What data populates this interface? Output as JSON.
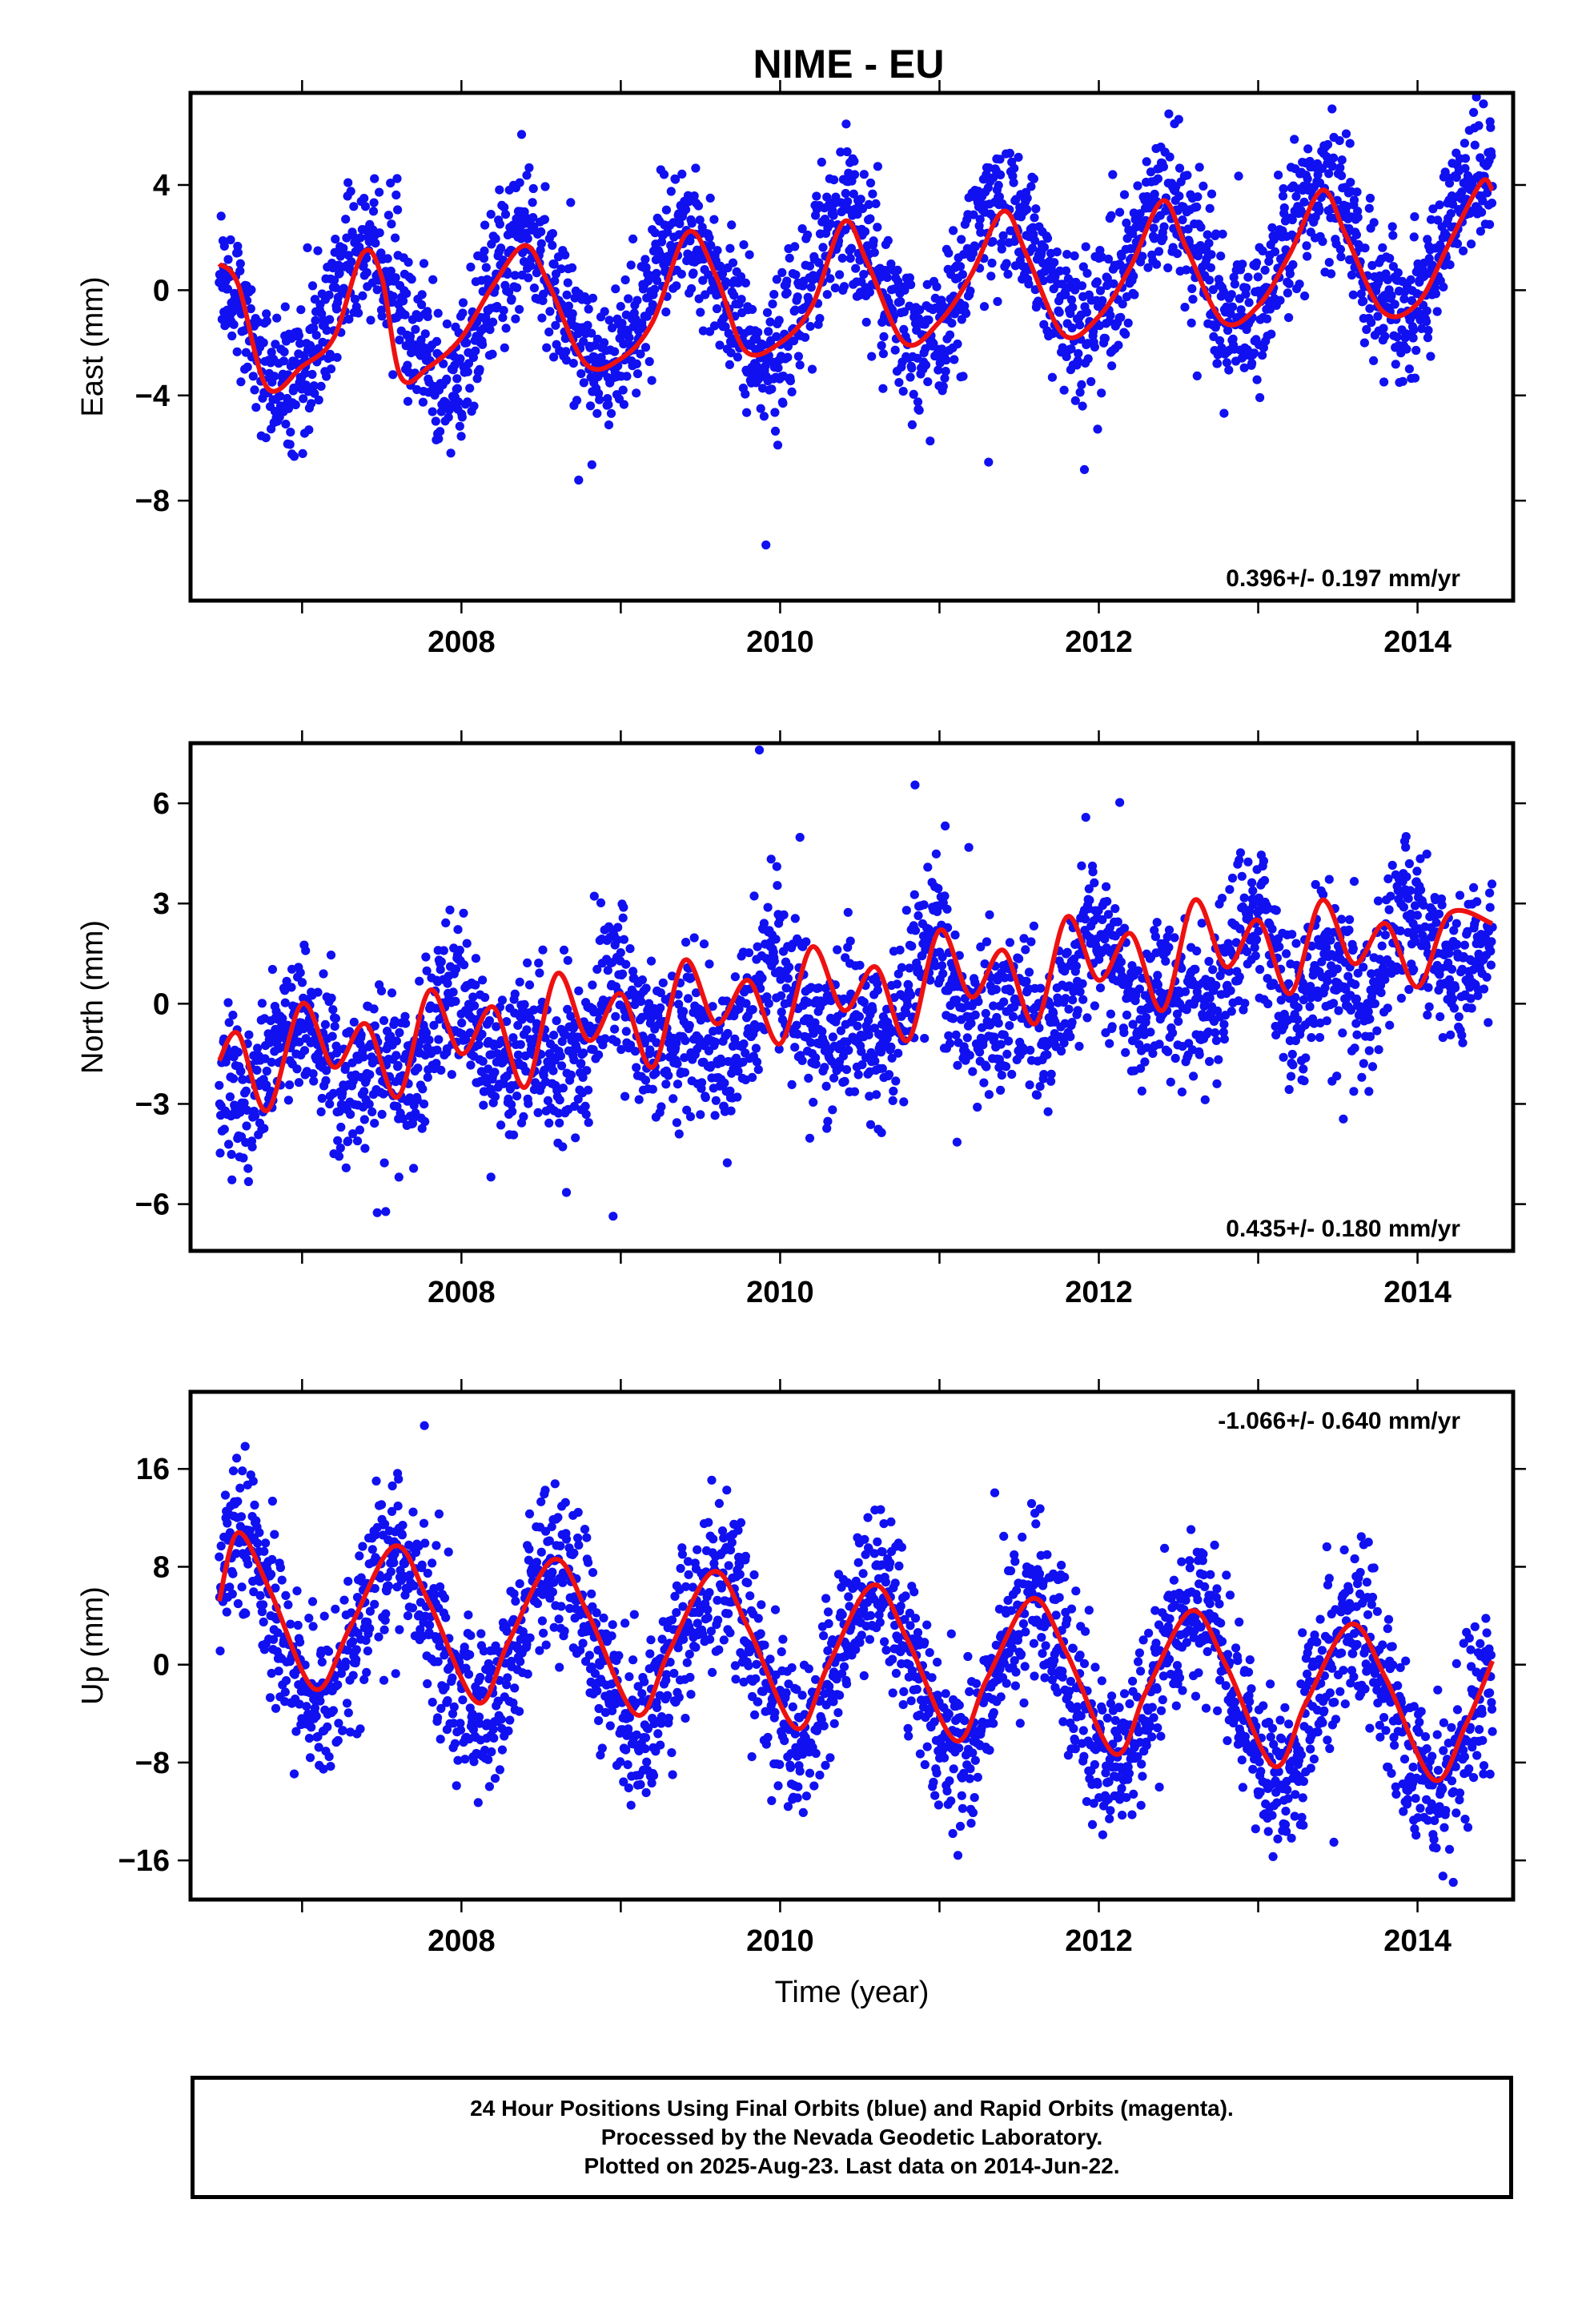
{
  "title": "NIME - EU",
  "xlabel": "Time (year)",
  "colors": {
    "data": "#1010f0",
    "model": "#ee1111"
  },
  "footer": {
    "line1": "24 Hour Positions Using Final Orbits (blue) and Rapid Orbits (magenta).",
    "line2": "Processed by the Nevada Geodetic Laboratory.",
    "line3": "Plotted on 2025-Aug-23. Last data on 2014-Jun-22."
  },
  "chart_data": [
    {
      "type": "scatter",
      "component": "east",
      "ylabel": "East (mm)",
      "xlim": [
        2006.3,
        2014.6
      ],
      "ylim": [
        -11.8,
        7.5
      ],
      "xticks": [
        2008,
        2010,
        2012,
        2014
      ],
      "yticks": [
        -8,
        -4,
        0,
        4
      ],
      "rate_label": "0.396+/- 0.197 mm/yr",
      "rate_label_position": "bottom-right",
      "data_start": 2006.48,
      "data_end": 2014.47,
      "model": {
        "name": "model",
        "x": [
          2006.48,
          2006.6,
          2006.78,
          2007.0,
          2007.2,
          2007.38,
          2007.5,
          2007.62,
          2007.8,
          2008.0,
          2008.2,
          2008.4,
          2008.55,
          2008.78,
          2009.0,
          2009.2,
          2009.42,
          2009.6,
          2009.78,
          2010.0,
          2010.2,
          2010.4,
          2010.55,
          2010.78,
          2011.0,
          2011.2,
          2011.4,
          2011.55,
          2011.78,
          2012.0,
          2012.2,
          2012.4,
          2012.55,
          2012.78,
          2013.0,
          2013.2,
          2013.4,
          2013.55,
          2013.78,
          2014.0,
          2014.2,
          2014.4,
          2014.47
        ],
        "y": [
          1.0,
          0.2,
          -3.7,
          -2.9,
          -1.8,
          1.4,
          0.5,
          -3.3,
          -2.9,
          -1.8,
          0.2,
          1.7,
          0.2,
          -2.8,
          -2.6,
          -1.2,
          2.2,
          0.5,
          -2.3,
          -2.0,
          -0.6,
          2.6,
          1.0,
          -2.0,
          -1.2,
          0.6,
          3.0,
          1.3,
          -1.7,
          -1.0,
          0.9,
          3.4,
          1.6,
          -1.2,
          -0.6,
          1.4,
          3.8,
          2.1,
          -0.8,
          -0.5,
          1.8,
          4.1,
          3.8
        ]
      },
      "trend": {
        "slope": 0.396,
        "intercept_2010": 0.0
      },
      "seasonal": [
        {
          "amplitude": 2.6,
          "peak": 2006.4
        }
      ],
      "scatter_noise": 1.35,
      "n_points": 2700
    },
    {
      "type": "scatter",
      "component": "north",
      "ylabel": "North (mm)",
      "xlim": [
        2006.3,
        2014.6
      ],
      "ylim": [
        -7.4,
        7.8
      ],
      "xticks": [
        2008,
        2010,
        2012,
        2014
      ],
      "yticks": [
        -6,
        -3,
        0,
        3,
        6
      ],
      "rate_label": "0.435+/- 0.180 mm/yr",
      "rate_label_position": "bottom-right",
      "data_start": 2006.48,
      "data_end": 2014.47,
      "model": {
        "name": "model",
        "x": [
          2006.48,
          2006.6,
          2006.78,
          2007.0,
          2007.2,
          2007.4,
          2007.6,
          2007.8,
          2008.0,
          2008.2,
          2008.4,
          2008.6,
          2008.8,
          2009.0,
          2009.2,
          2009.4,
          2009.6,
          2009.8,
          2010.0,
          2010.2,
          2010.4,
          2010.6,
          2010.8,
          2011.0,
          2011.2,
          2011.4,
          2011.6,
          2011.8,
          2012.0,
          2012.2,
          2012.4,
          2012.6,
          2012.8,
          2013.0,
          2013.2,
          2013.4,
          2013.6,
          2013.8,
          2014.0,
          2014.2,
          2014.47
        ],
        "y": [
          -1.7,
          -0.9,
          -3.2,
          0.0,
          -1.9,
          -0.6,
          -2.8,
          0.4,
          -1.5,
          -0.1,
          -2.5,
          0.9,
          -1.1,
          0.3,
          -1.9,
          1.3,
          -0.6,
          0.7,
          -1.2,
          1.7,
          -0.2,
          1.1,
          -1.1,
          2.2,
          0.2,
          1.6,
          -0.6,
          2.6,
          0.7,
          2.1,
          -0.2,
          3.1,
          1.1,
          2.5,
          0.3,
          3.1,
          1.2,
          2.4,
          0.5,
          2.7,
          2.4
        ]
      },
      "trend": {
        "slope": 0.435,
        "intercept_2010": -0.4
      },
      "seasonal": [
        {
          "amplitude": 0.9,
          "peak": 2006.97
        },
        {
          "amplitude": 0.8,
          "peak": 2006.45,
          "period": 0.5
        }
      ],
      "scatter_noise": 1.15,
      "n_points": 2700
    },
    {
      "type": "scatter",
      "component": "up",
      "ylabel": "Up (mm)",
      "xlim": [
        2006.3,
        2014.6
      ],
      "ylim": [
        -19.2,
        22.3
      ],
      "xticks": [
        2008,
        2010,
        2012,
        2014
      ],
      "yticks": [
        -16,
        -8,
        0,
        8,
        16
      ],
      "rate_label": "-1.066+/- 0.640 mm/yr",
      "rate_label_position": "top-right",
      "data_start": 2006.48,
      "data_end": 2014.47,
      "model": {
        "name": "model",
        "x": [
          2006.48,
          2006.6,
          2006.8,
          2007.08,
          2007.3,
          2007.58,
          2007.8,
          2008.1,
          2008.3,
          2008.58,
          2008.8,
          2009.1,
          2009.3,
          2009.58,
          2009.8,
          2010.1,
          2010.3,
          2010.58,
          2010.8,
          2011.1,
          2011.3,
          2011.58,
          2011.8,
          2012.1,
          2012.3,
          2012.58,
          2012.8,
          2013.1,
          2013.3,
          2013.58,
          2013.8,
          2014.1,
          2014.3,
          2014.47
        ],
        "y": [
          5.2,
          10.8,
          6.0,
          -2.0,
          3.0,
          9.7,
          5.0,
          -3.1,
          2.0,
          8.6,
          4.0,
          -4.1,
          1.0,
          7.6,
          3.0,
          -5.2,
          -0.1,
          6.5,
          2.0,
          -6.2,
          -1.1,
          5.4,
          0.9,
          -7.3,
          -2.1,
          4.4,
          -0.1,
          -8.3,
          -3.1,
          3.3,
          -1.1,
          -9.4,
          -5.0,
          0.3
        ]
      },
      "trend": {
        "slope": -1.066,
        "intercept_2010": 0.3
      },
      "seasonal": [
        {
          "amplitude": 6.5,
          "peak": 2006.6
        }
      ],
      "scatter_noise": 3.2,
      "n_points": 2700
    }
  ]
}
